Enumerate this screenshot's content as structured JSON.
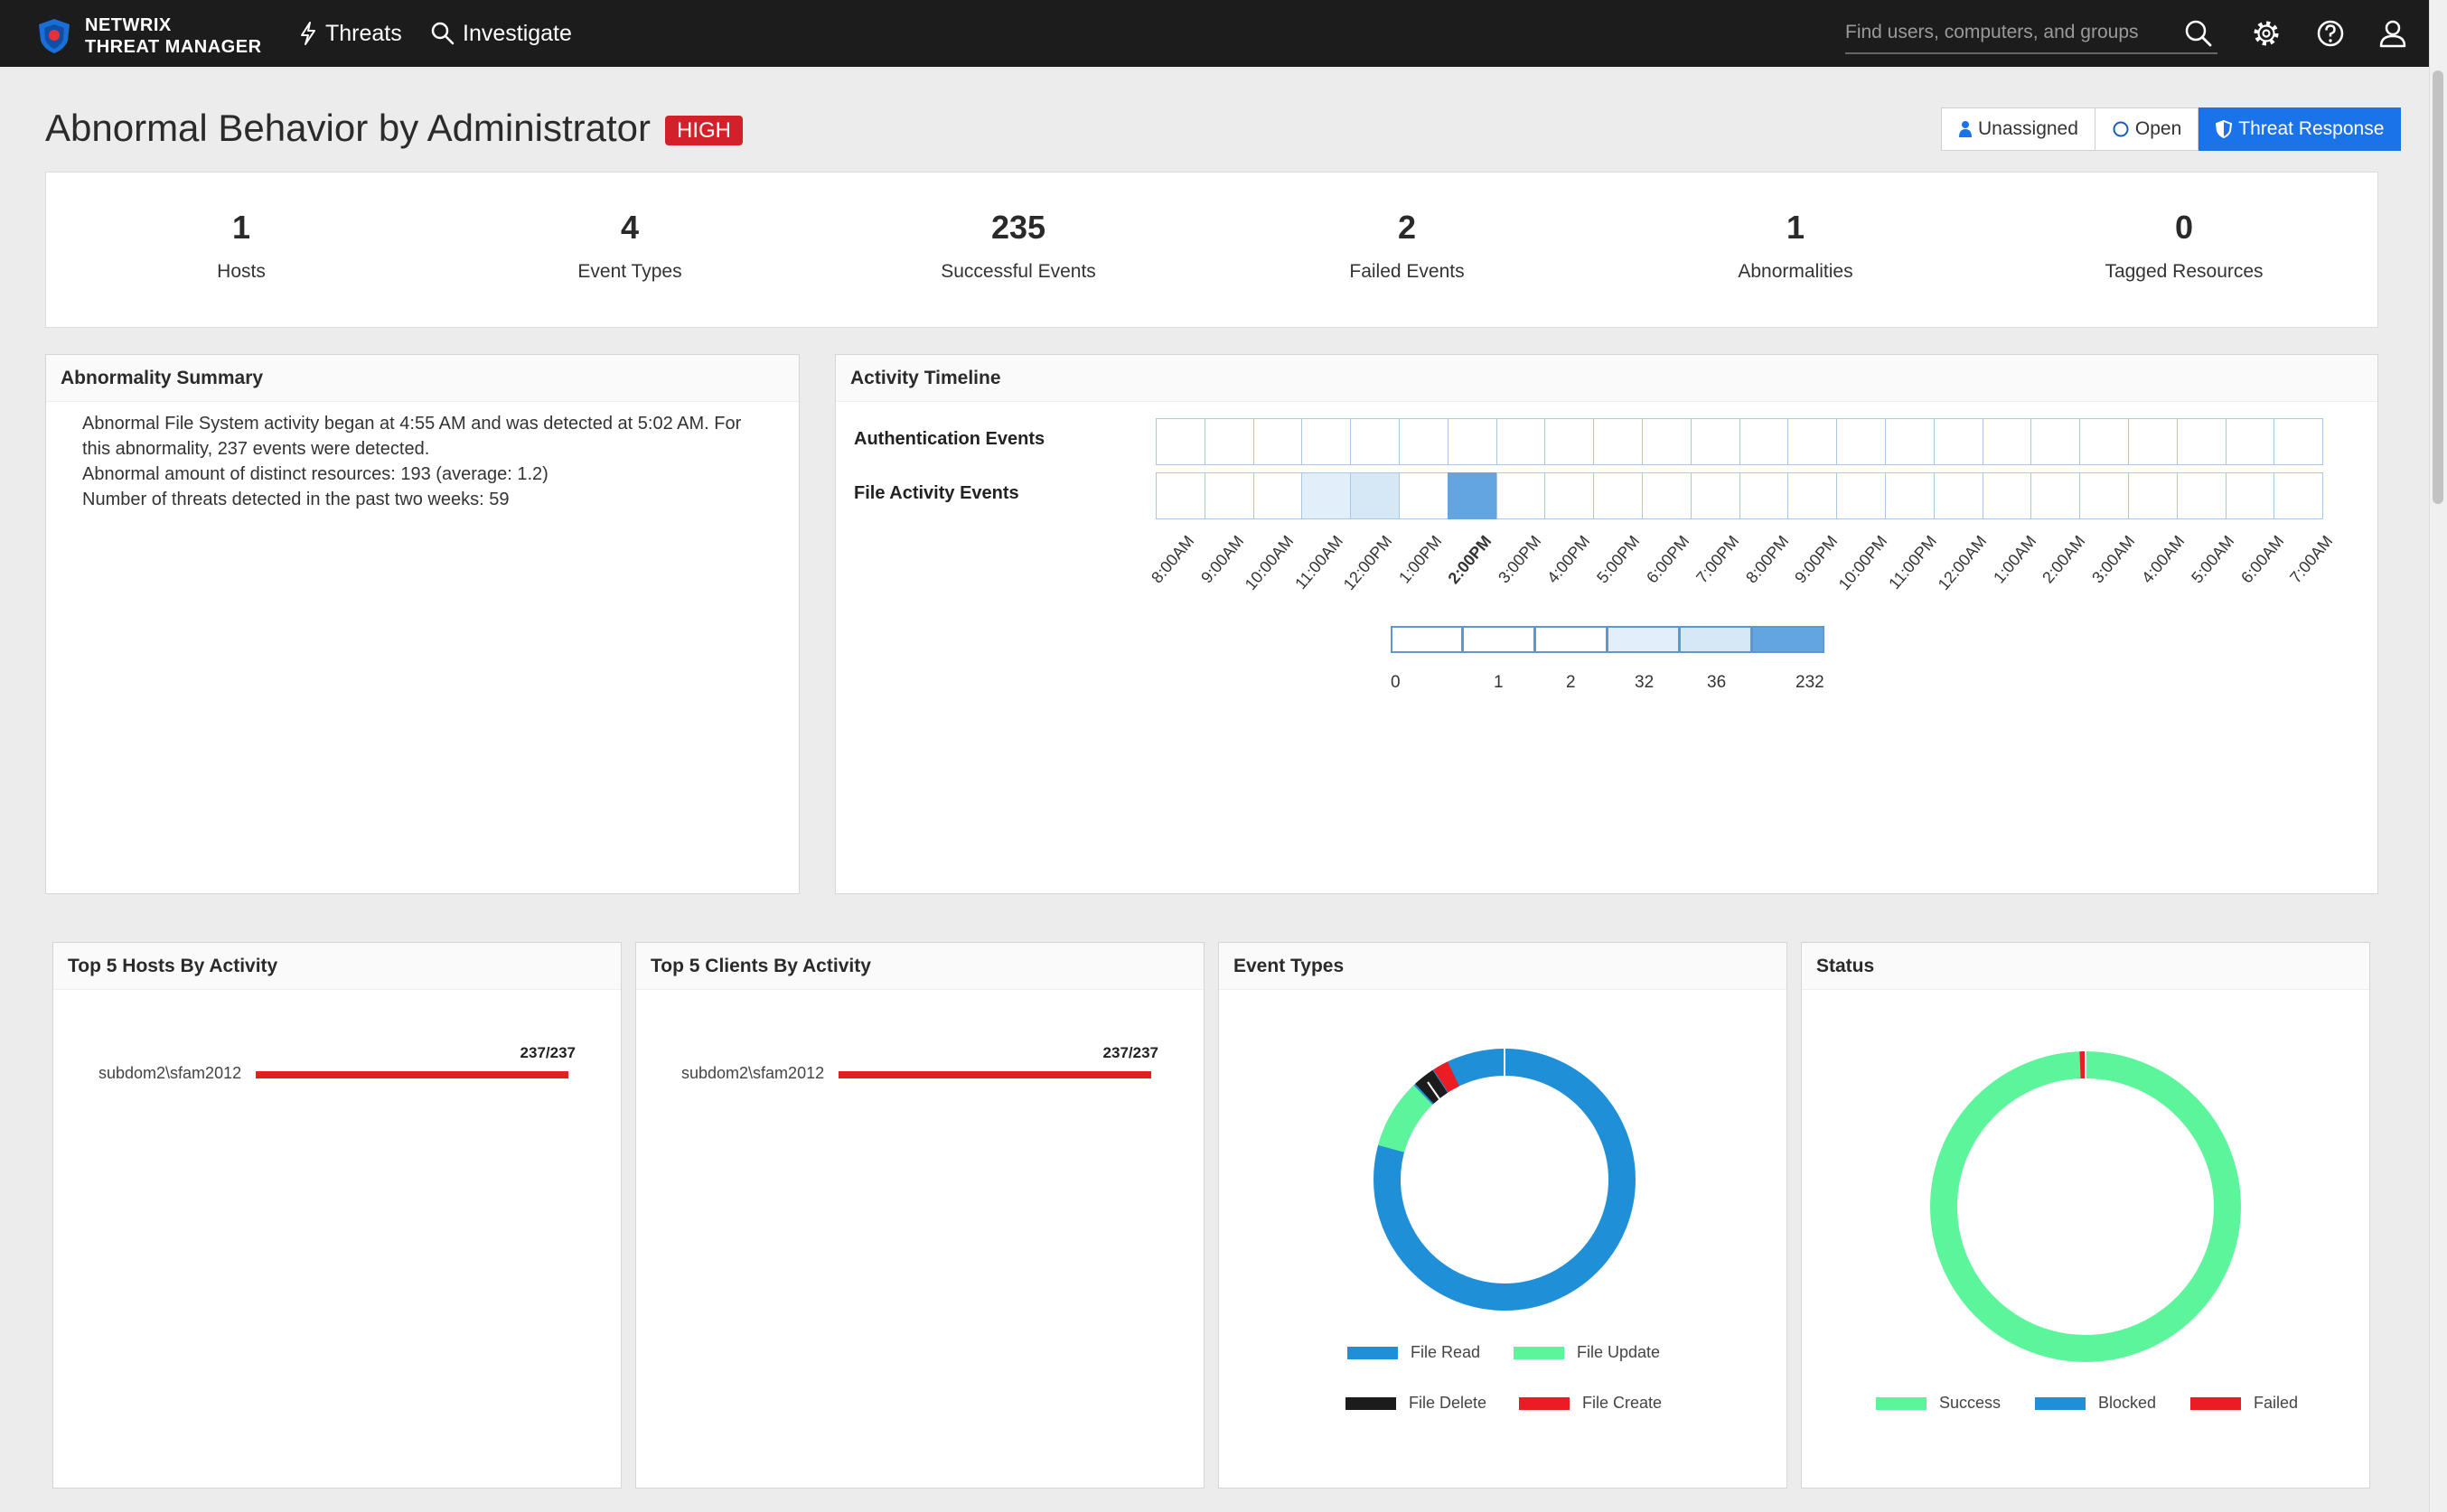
{
  "app": {
    "logo_line1": "NETWRIX",
    "logo_line2": "THREAT MANAGER"
  },
  "nav": [
    {
      "label": "Threats",
      "icon": "bolt-icon"
    },
    {
      "label": "Investigate",
      "icon": "search-icon"
    }
  ],
  "search": {
    "placeholder": "Find users, computers, and groups"
  },
  "header": {
    "title": "Abnormal Behavior by Administrator",
    "severity": "HIGH",
    "assign_label": "Unassigned",
    "status_label": "Open",
    "response_label": "Threat Response"
  },
  "stats": [
    {
      "value": "1",
      "label": "Hosts"
    },
    {
      "value": "4",
      "label": "Event Types"
    },
    {
      "value": "235",
      "label": "Successful Events"
    },
    {
      "value": "2",
      "label": "Failed Events"
    },
    {
      "value": "1",
      "label": "Abnormalities"
    },
    {
      "value": "0",
      "label": "Tagged Resources"
    }
  ],
  "summary": {
    "title": "Abnormality Summary",
    "lines": [
      "Abnormal File System activity began at 4:55 AM and was detected at 5:02 AM. For this abnormality, 237 events were detected.",
      "Abnormal amount of distinct resources: 193 (average: 1.2)",
      "Number of threats detected in the past two weeks: 59"
    ]
  },
  "timeline": {
    "title": "Activity Timeline",
    "rows": [
      {
        "label": "Authentication Events",
        "levels": [
          0,
          0,
          0,
          0,
          0,
          0,
          0,
          0,
          0,
          0,
          0,
          0,
          0,
          0,
          0,
          0,
          0,
          0,
          0,
          0,
          0,
          0,
          0,
          0
        ]
      },
      {
        "label": "File Activity Events",
        "levels": [
          0,
          0,
          0,
          3,
          4,
          0,
          5,
          0,
          0,
          0,
          0,
          0,
          0,
          0,
          0,
          0,
          0,
          0,
          0,
          0,
          0,
          0,
          0,
          0
        ]
      }
    ],
    "hours": [
      "8:00AM",
      "9:00AM",
      "10:00AM",
      "11:00AM",
      "12:00PM",
      "1:00PM",
      "2:00PM",
      "3:00PM",
      "4:00PM",
      "5:00PM",
      "6:00PM",
      "7:00PM",
      "8:00PM",
      "9:00PM",
      "10:00PM",
      "11:00PM",
      "12:00AM",
      "1:00AM",
      "2:00AM",
      "3:00AM",
      "4:00AM",
      "5:00AM",
      "6:00AM",
      "7:00AM"
    ],
    "highlight_hour": "2:00PM",
    "legend": [
      "0",
      "1",
      "2",
      "32",
      "36",
      "232"
    ],
    "level_colors": [
      "#ffffff",
      "#ffffff",
      "#ffffff",
      "#e2eef9",
      "#d6e7f6",
      "#62a5e0"
    ]
  },
  "hosts": {
    "title": "Top 5 Hosts By Activity",
    "items": [
      {
        "name": "subdom2\\sfam2012",
        "value": "237/237",
        "fraction": 1.0
      }
    ]
  },
  "clients": {
    "title": "Top 5 Clients By Activity",
    "items": [
      {
        "name": "subdom2\\sfam2012",
        "value": "237/237",
        "fraction": 1.0
      }
    ]
  },
  "event_types": {
    "title": "Event Types",
    "legend": [
      {
        "label": "File Read",
        "color": "#1f90d8"
      },
      {
        "label": "File Update",
        "color": "#5df59b"
      },
      {
        "label": "File Delete",
        "color": "#1c1c1c"
      },
      {
        "label": "File Create",
        "color": "#ec1c24"
      }
    ]
  },
  "status": {
    "title": "Status",
    "legend": [
      {
        "label": "Success",
        "color": "#5df59b"
      },
      {
        "label": "Blocked",
        "color": "#1f90d8"
      },
      {
        "label": "Failed",
        "color": "#ec1c24"
      }
    ]
  }
}
